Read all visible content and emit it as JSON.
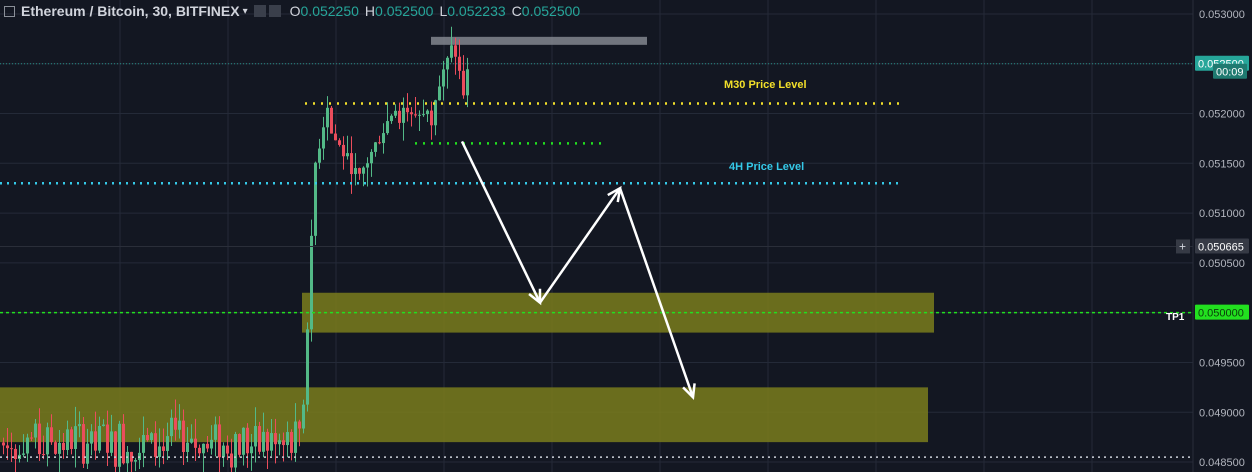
{
  "header": {
    "symbol": "Ethereum / Bitcoin, 30, BITFINEX",
    "ohlc": [
      {
        "label": "O",
        "value": "0.052250"
      },
      {
        "label": "H",
        "value": "0.052500"
      },
      {
        "label": "L",
        "value": "0.052233"
      },
      {
        "label": "C",
        "value": "0.052500"
      }
    ]
  },
  "colors": {
    "background": "#131722",
    "grid": "#242a38",
    "up": "#53b987",
    "down": "#eb4d5c",
    "zone": "#7a7d1c",
    "yellow_level": "#f3e02a",
    "cyan_level": "#35c9e8",
    "green_level": "#22e01f",
    "arrow": "#ffffff"
  },
  "chart_data": {
    "type": "candlestick",
    "ylim": [
      0.0484,
      0.05314
    ],
    "y_ticks": [
      "0.053000",
      "0.052500",
      "0.052000",
      "0.051500",
      "0.051000",
      "0.050500",
      "0.050000",
      "0.049500",
      "0.049000",
      "0.048500"
    ],
    "price_labels": [
      {
        "text": "0.052500",
        "y": 0.0525,
        "style": "current"
      },
      {
        "text": "00:09",
        "y": 0.05242,
        "style": "timer"
      },
      {
        "text": "0.050665",
        "y": 0.050665,
        "style": "cursor"
      },
      {
        "text": "0.050000",
        "y": 0.05,
        "style": "tp"
      }
    ],
    "horizontal_levels": [
      {
        "name": "M30 Price Level",
        "y": 0.0521,
        "color": "#f3e02a"
      },
      {
        "name": "4H Price Level",
        "y": 0.0513,
        "color": "#35c9e8"
      },
      {
        "name": "",
        "y": 0.0517,
        "color": "#22e01f"
      },
      {
        "name": "TP1",
        "y": 0.05,
        "color": "#22e01f"
      },
      {
        "name": "",
        "y": 0.04855,
        "color": "#cfd3dc"
      }
    ],
    "zones": [
      {
        "y_top": 0.0502,
        "y_bottom": 0.0498
      },
      {
        "y_top": 0.04925,
        "y_bottom": 0.0487
      }
    ],
    "resistance_box": {
      "y_top": 0.05275,
      "y_bottom": 0.05268
    },
    "projection_path": [
      0.05172,
      0.0501,
      0.05125,
      0.04915
    ],
    "candles_note": "price ~0.0485-0.0491 early, sharp rally to ~0.0525, consolidation 0.0510-0.0528"
  },
  "annotations": {
    "m30": "M30 Price Level",
    "h4": "4H Price Level",
    "tp1": "TP1"
  }
}
